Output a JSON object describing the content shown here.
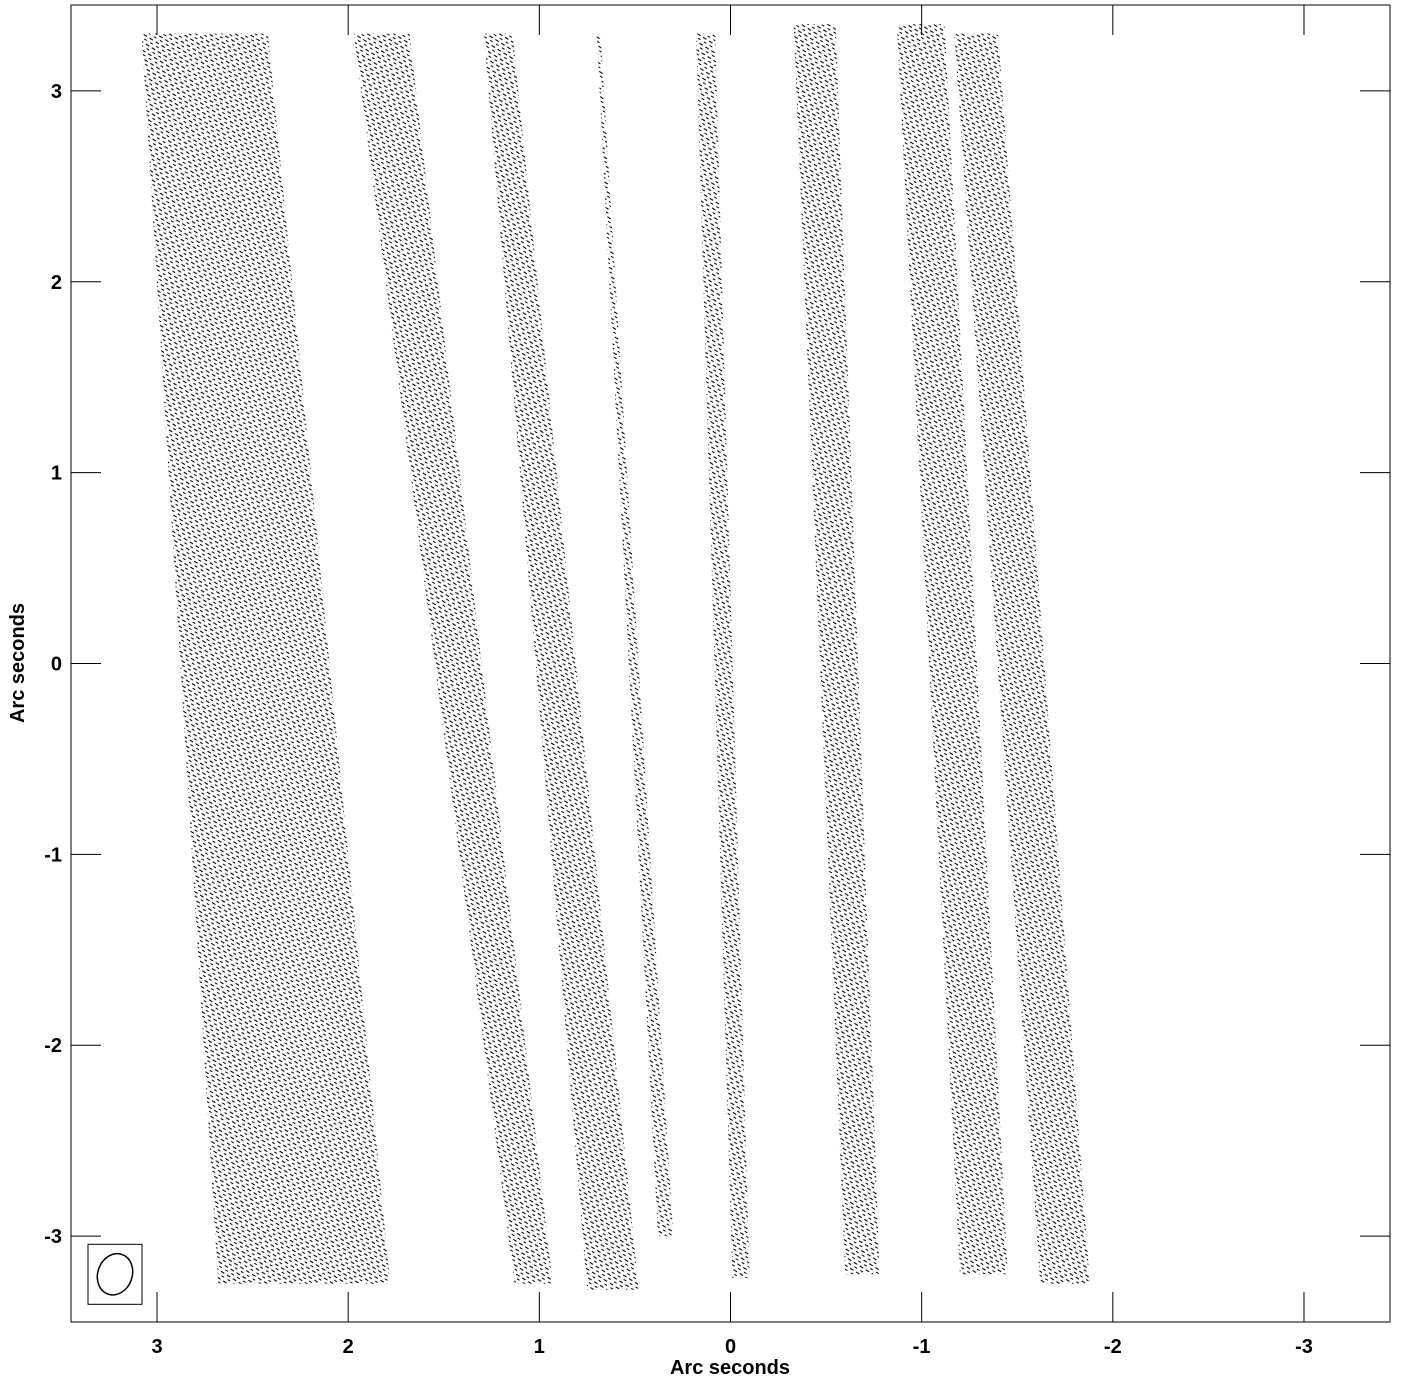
{
  "chart_data": {
    "type": "contour",
    "xlabel": "Arc seconds",
    "ylabel": "Arc seconds",
    "xlim": [
      3.45,
      -3.45
    ],
    "ylim": [
      -3.45,
      3.45
    ],
    "xticks": [
      3,
      2,
      1,
      0,
      -1,
      -2,
      -3
    ],
    "yticks": [
      3,
      2,
      1,
      0,
      -1,
      -2,
      -3
    ],
    "xtick_labels": [
      "3",
      "2",
      "1",
      "0",
      "-1",
      "-2",
      "-3"
    ],
    "ytick_labels": [
      "3",
      "2",
      "1",
      "0",
      "-1",
      "-2",
      "-3"
    ],
    "line_color": "#000000",
    "bands": [
      {
        "top": [
          3.08,
          3.3,
          2.42,
          3.3
        ],
        "bottom": [
          2.68,
          -3.25,
          1.78,
          -3.25
        ]
      },
      {
        "top": [
          1.97,
          3.3,
          1.68,
          3.3
        ],
        "bottom": [
          1.13,
          -3.25,
          0.93,
          -3.25
        ]
      },
      {
        "top": [
          1.29,
          3.3,
          1.14,
          3.3
        ],
        "bottom": [
          0.75,
          -3.28,
          0.48,
          -3.28
        ]
      },
      {
        "top": [
          0.7,
          3.3,
          0.68,
          3.3
        ],
        "bottom": [
          0.38,
          -3.0,
          0.3,
          -3.0
        ]
      },
      {
        "top": [
          0.18,
          3.3,
          0.08,
          3.3
        ],
        "bottom": [
          -0.01,
          -3.22,
          -0.1,
          -3.22
        ]
      },
      {
        "top": [
          -0.33,
          3.35,
          -0.55,
          3.35
        ],
        "bottom": [
          -0.6,
          -3.2,
          -0.78,
          -3.2
        ]
      },
      {
        "top": [
          -0.87,
          3.35,
          -1.12,
          3.35
        ],
        "bottom": [
          -1.2,
          -3.2,
          -1.45,
          -3.2
        ]
      },
      {
        "top": [
          -1.17,
          3.3,
          -1.4,
          3.3
        ],
        "bottom": [
          -1.62,
          -3.25,
          -1.88,
          -3.25
        ]
      }
    ],
    "beam": {
      "x": 3.22,
      "y": -3.2,
      "rx": 0.09,
      "ry": 0.11,
      "angle_deg": 20
    }
  }
}
